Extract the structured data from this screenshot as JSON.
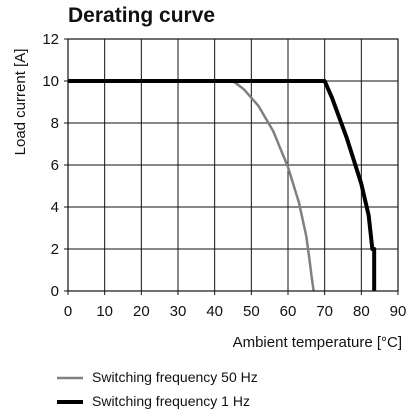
{
  "chart_data": {
    "type": "line",
    "title": "Derating curve",
    "xlabel": "Ambient temperature [°C]",
    "ylabel": "Load current [A]",
    "xlim": [
      0,
      90
    ],
    "ylim": [
      0,
      12
    ],
    "x_ticks": [
      0,
      10,
      20,
      30,
      40,
      50,
      60,
      70,
      80,
      90
    ],
    "y_ticks": [
      0,
      2,
      4,
      6,
      8,
      10,
      12
    ],
    "grid": true,
    "legend_position": "bottom-left",
    "series": [
      {
        "name": "Switching frequency 50 Hz",
        "color": "#808080",
        "style": "medium",
        "x": [
          0,
          45,
          48,
          52,
          56,
          60,
          63,
          65,
          66,
          66.5,
          67
        ],
        "y": [
          10,
          10,
          9.6,
          8.8,
          7.6,
          5.9,
          4.2,
          2.6,
          1.3,
          0.6,
          0
        ]
      },
      {
        "name": "Switching frequency 1 Hz",
        "color": "#000000",
        "style": "bold",
        "x": [
          0,
          70,
          72,
          76,
          80,
          82,
          83,
          83.5,
          83.5
        ],
        "y": [
          10,
          10,
          9.2,
          7.3,
          5.1,
          3.6,
          2.0,
          2.0,
          0
        ]
      }
    ]
  }
}
